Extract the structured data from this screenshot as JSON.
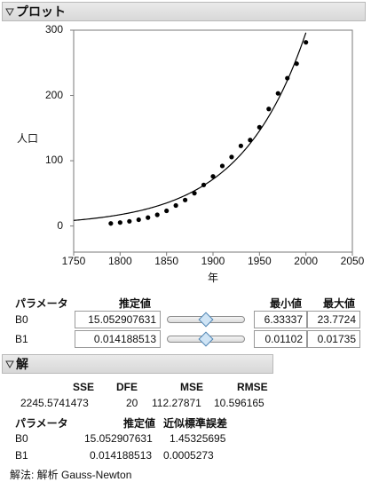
{
  "plot_section": {
    "title": "プロット"
  },
  "chart_data": {
    "type": "scatter",
    "ylabel": "人口",
    "xlabel": "年",
    "xlim": [
      1750,
      2050
    ],
    "ylim": [
      -40,
      300
    ],
    "x_ticks": [
      "1750",
      "1800",
      "1850",
      "1900",
      "1950",
      "2000",
      "2050"
    ],
    "y_ticks": [
      "0",
      "100",
      "200",
      "300"
    ],
    "points": [
      {
        "x": 1790,
        "y": 3.9
      },
      {
        "x": 1800,
        "y": 5.3
      },
      {
        "x": 1810,
        "y": 7.2
      },
      {
        "x": 1820,
        "y": 9.6
      },
      {
        "x": 1830,
        "y": 12.9
      },
      {
        "x": 1840,
        "y": 17.1
      },
      {
        "x": 1850,
        "y": 23.2
      },
      {
        "x": 1860,
        "y": 31.4
      },
      {
        "x": 1870,
        "y": 39.8
      },
      {
        "x": 1880,
        "y": 50.2
      },
      {
        "x": 1890,
        "y": 62.9
      },
      {
        "x": 1900,
        "y": 76.0
      },
      {
        "x": 1910,
        "y": 92.0
      },
      {
        "x": 1920,
        "y": 105.7
      },
      {
        "x": 1930,
        "y": 122.8
      },
      {
        "x": 1940,
        "y": 131.7
      },
      {
        "x": 1950,
        "y": 151.3
      },
      {
        "x": 1960,
        "y": 179.3
      },
      {
        "x": 1970,
        "y": 203.2
      },
      {
        "x": 1980,
        "y": 226.5
      },
      {
        "x": 1990,
        "y": 248.7
      },
      {
        "x": 2000,
        "y": 281.4
      }
    ],
    "fit": {
      "b0": 15.052907631,
      "b1": 0.014188513,
      "x_offset": 1790
    }
  },
  "params_panel": {
    "headers": {
      "param": "パラメータ",
      "estimate": "推定値",
      "min": "最小値",
      "max": "最大値"
    },
    "rows": [
      {
        "name": "B0",
        "value": "15.052907631",
        "min": "6.33337",
        "max": "23.7724",
        "slider_fraction": 0.5
      },
      {
        "name": "B1",
        "value": "0.014188513",
        "min": "0.01102",
        "max": "0.01735",
        "slider_fraction": 0.5
      }
    ]
  },
  "solution_section": {
    "title": "解",
    "stats_headers": [
      "SSE",
      "DFE",
      "MSE",
      "RMSE"
    ],
    "stats_values": [
      "2245.5741473",
      "20",
      "112.27871",
      "10.596165"
    ],
    "param_headers": {
      "param": "パラメータ",
      "estimate": "推定値",
      "stderr": "近似標準誤差"
    },
    "param_rows": [
      {
        "name": "B0",
        "estimate": "15.052907631",
        "stderr": "1.45325695"
      },
      {
        "name": "B1",
        "estimate": "0.014188513",
        "stderr": "0.0005273"
      }
    ],
    "method": "解法: 解析 Gauss-Newton"
  }
}
